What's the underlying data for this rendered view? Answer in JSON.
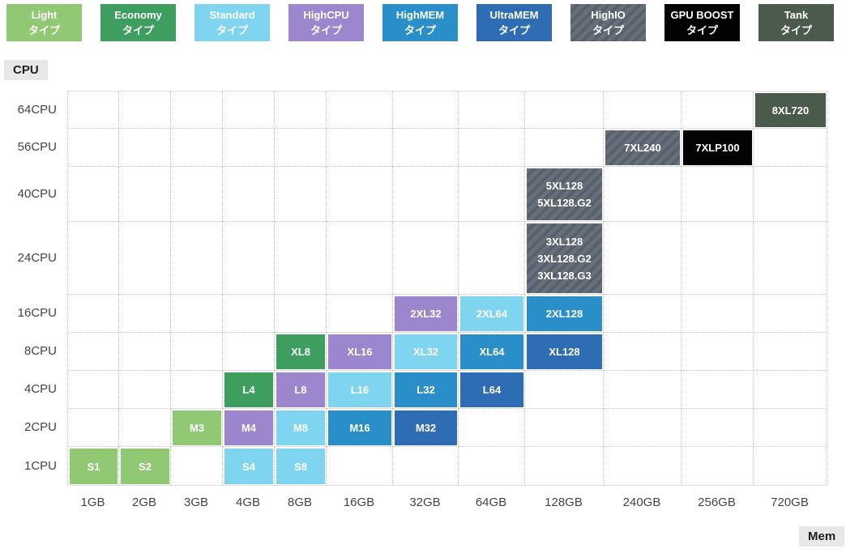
{
  "axes": {
    "y_title": "CPU",
    "x_title": "Mem"
  },
  "legend": {
    "items": [
      {
        "label": "Light",
        "sub": "タイプ",
        "type": "Light"
      },
      {
        "label": "Economy",
        "sub": "タイプ",
        "type": "Economy"
      },
      {
        "label": "Standard",
        "sub": "タイプ",
        "type": "Standard"
      },
      {
        "label": "HighCPU",
        "sub": "タイプ",
        "type": "HighCPU"
      },
      {
        "label": "HighMEM",
        "sub": "タイプ",
        "type": "HighMEM"
      },
      {
        "label": "UltraMEM",
        "sub": "タイプ",
        "type": "UltraMEM"
      },
      {
        "label": "HighIO",
        "sub": "タイプ",
        "type": "HighIO"
      },
      {
        "label": "GPU BOOST",
        "sub": "タイプ",
        "type": "GPU BOOST"
      },
      {
        "label": "Tank",
        "sub": "タイプ",
        "type": "Tank"
      }
    ]
  },
  "types": {
    "Light": {
      "bg": "#90c873",
      "fg": "#ffffff",
      "hatch": false
    },
    "Economy": {
      "bg": "#3e9e60",
      "fg": "#ffffff",
      "hatch": false
    },
    "Standard": {
      "bg": "#7fd4f0",
      "fg": "#ffffff",
      "hatch": false
    },
    "HighCPU": {
      "bg": "#9c86ce",
      "fg": "#ffffff",
      "hatch": false
    },
    "HighMEM": {
      "bg": "#2a8fc8",
      "fg": "#ffffff",
      "hatch": false
    },
    "UltraMEM": {
      "bg": "#2e6db4",
      "fg": "#ffffff",
      "hatch": false
    },
    "HighIO": {
      "bg": "#67707a",
      "fg": "#ffffff",
      "hatch": true,
      "hatch_color": "#58616b"
    },
    "GPU BOOST": {
      "bg": "#030303",
      "fg": "#ffffff",
      "hatch": false
    },
    "Tank": {
      "bg": "#4b5b4b",
      "fg": "#ffffff",
      "hatch": false
    }
  },
  "chart_data": {
    "type": "heatmap",
    "title": "",
    "xlabel": "Mem",
    "ylabel": "CPU",
    "x_categories": [
      "1GB",
      "2GB",
      "3GB",
      "4GB",
      "8GB",
      "16GB",
      "32GB",
      "64GB",
      "128GB",
      "240GB",
      "256GB",
      "720GB"
    ],
    "y_categories": [
      "1CPU",
      "2CPU",
      "4CPU",
      "8CPU",
      "16CPU",
      "24CPU",
      "40CPU",
      "56CPU",
      "64CPU"
    ],
    "grid": "dotted",
    "legend_position": "top",
    "cells": [
      {
        "labels": [
          "S1"
        ],
        "cpu": "1CPU",
        "mem": "1GB",
        "type": "Light"
      },
      {
        "labels": [
          "S2"
        ],
        "cpu": "1CPU",
        "mem": "2GB",
        "type": "Light"
      },
      {
        "labels": [
          "S4"
        ],
        "cpu": "1CPU",
        "mem": "4GB",
        "type": "Standard"
      },
      {
        "labels": [
          "S8"
        ],
        "cpu": "1CPU",
        "mem": "8GB",
        "type": "Standard"
      },
      {
        "labels": [
          "M3"
        ],
        "cpu": "2CPU",
        "mem": "3GB",
        "type": "Light"
      },
      {
        "labels": [
          "M4"
        ],
        "cpu": "2CPU",
        "mem": "4GB",
        "type": "HighCPU"
      },
      {
        "labels": [
          "M8"
        ],
        "cpu": "2CPU",
        "mem": "8GB",
        "type": "Standard"
      },
      {
        "labels": [
          "M16"
        ],
        "cpu": "2CPU",
        "mem": "16GB",
        "type": "HighMEM"
      },
      {
        "labels": [
          "M32"
        ],
        "cpu": "2CPU",
        "mem": "32GB",
        "type": "UltraMEM"
      },
      {
        "labels": [
          "L4"
        ],
        "cpu": "4CPU",
        "mem": "4GB",
        "type": "Economy"
      },
      {
        "labels": [
          "L8"
        ],
        "cpu": "4CPU",
        "mem": "8GB",
        "type": "HighCPU"
      },
      {
        "labels": [
          "L16"
        ],
        "cpu": "4CPU",
        "mem": "16GB",
        "type": "Standard"
      },
      {
        "labels": [
          "L32"
        ],
        "cpu": "4CPU",
        "mem": "32GB",
        "type": "HighMEM"
      },
      {
        "labels": [
          "L64"
        ],
        "cpu": "4CPU",
        "mem": "64GB",
        "type": "UltraMEM"
      },
      {
        "labels": [
          "XL8"
        ],
        "cpu": "8CPU",
        "mem": "8GB",
        "type": "Economy"
      },
      {
        "labels": [
          "XL16"
        ],
        "cpu": "8CPU",
        "mem": "16GB",
        "type": "HighCPU"
      },
      {
        "labels": [
          "XL32"
        ],
        "cpu": "8CPU",
        "mem": "32GB",
        "type": "Standard"
      },
      {
        "labels": [
          "XL64"
        ],
        "cpu": "8CPU",
        "mem": "64GB",
        "type": "HighMEM"
      },
      {
        "labels": [
          "XL128"
        ],
        "cpu": "8CPU",
        "mem": "128GB",
        "type": "UltraMEM"
      },
      {
        "labels": [
          "2XL32"
        ],
        "cpu": "16CPU",
        "mem": "32GB",
        "type": "HighCPU"
      },
      {
        "labels": [
          "2XL64"
        ],
        "cpu": "16CPU",
        "mem": "64GB",
        "type": "Standard"
      },
      {
        "labels": [
          "2XL128"
        ],
        "cpu": "16CPU",
        "mem": "128GB",
        "type": "HighMEM"
      },
      {
        "labels": [
          "3XL128",
          "3XL128.G2",
          "3XL128.G3"
        ],
        "cpu": "24CPU",
        "mem": "128GB",
        "type": "HighIO"
      },
      {
        "labels": [
          "5XL128",
          "5XL128.G2"
        ],
        "cpu": "40CPU",
        "mem": "128GB",
        "type": "HighIO"
      },
      {
        "labels": [
          "7XL240"
        ],
        "cpu": "56CPU",
        "mem": "240GB",
        "type": "HighIO"
      },
      {
        "labels": [
          "7XLP100"
        ],
        "cpu": "56CPU",
        "mem": "256GB",
        "type": "GPU BOOST"
      },
      {
        "labels": [
          "8XL720"
        ],
        "cpu": "64CPU",
        "mem": "720GB",
        "type": "Tank"
      }
    ]
  }
}
